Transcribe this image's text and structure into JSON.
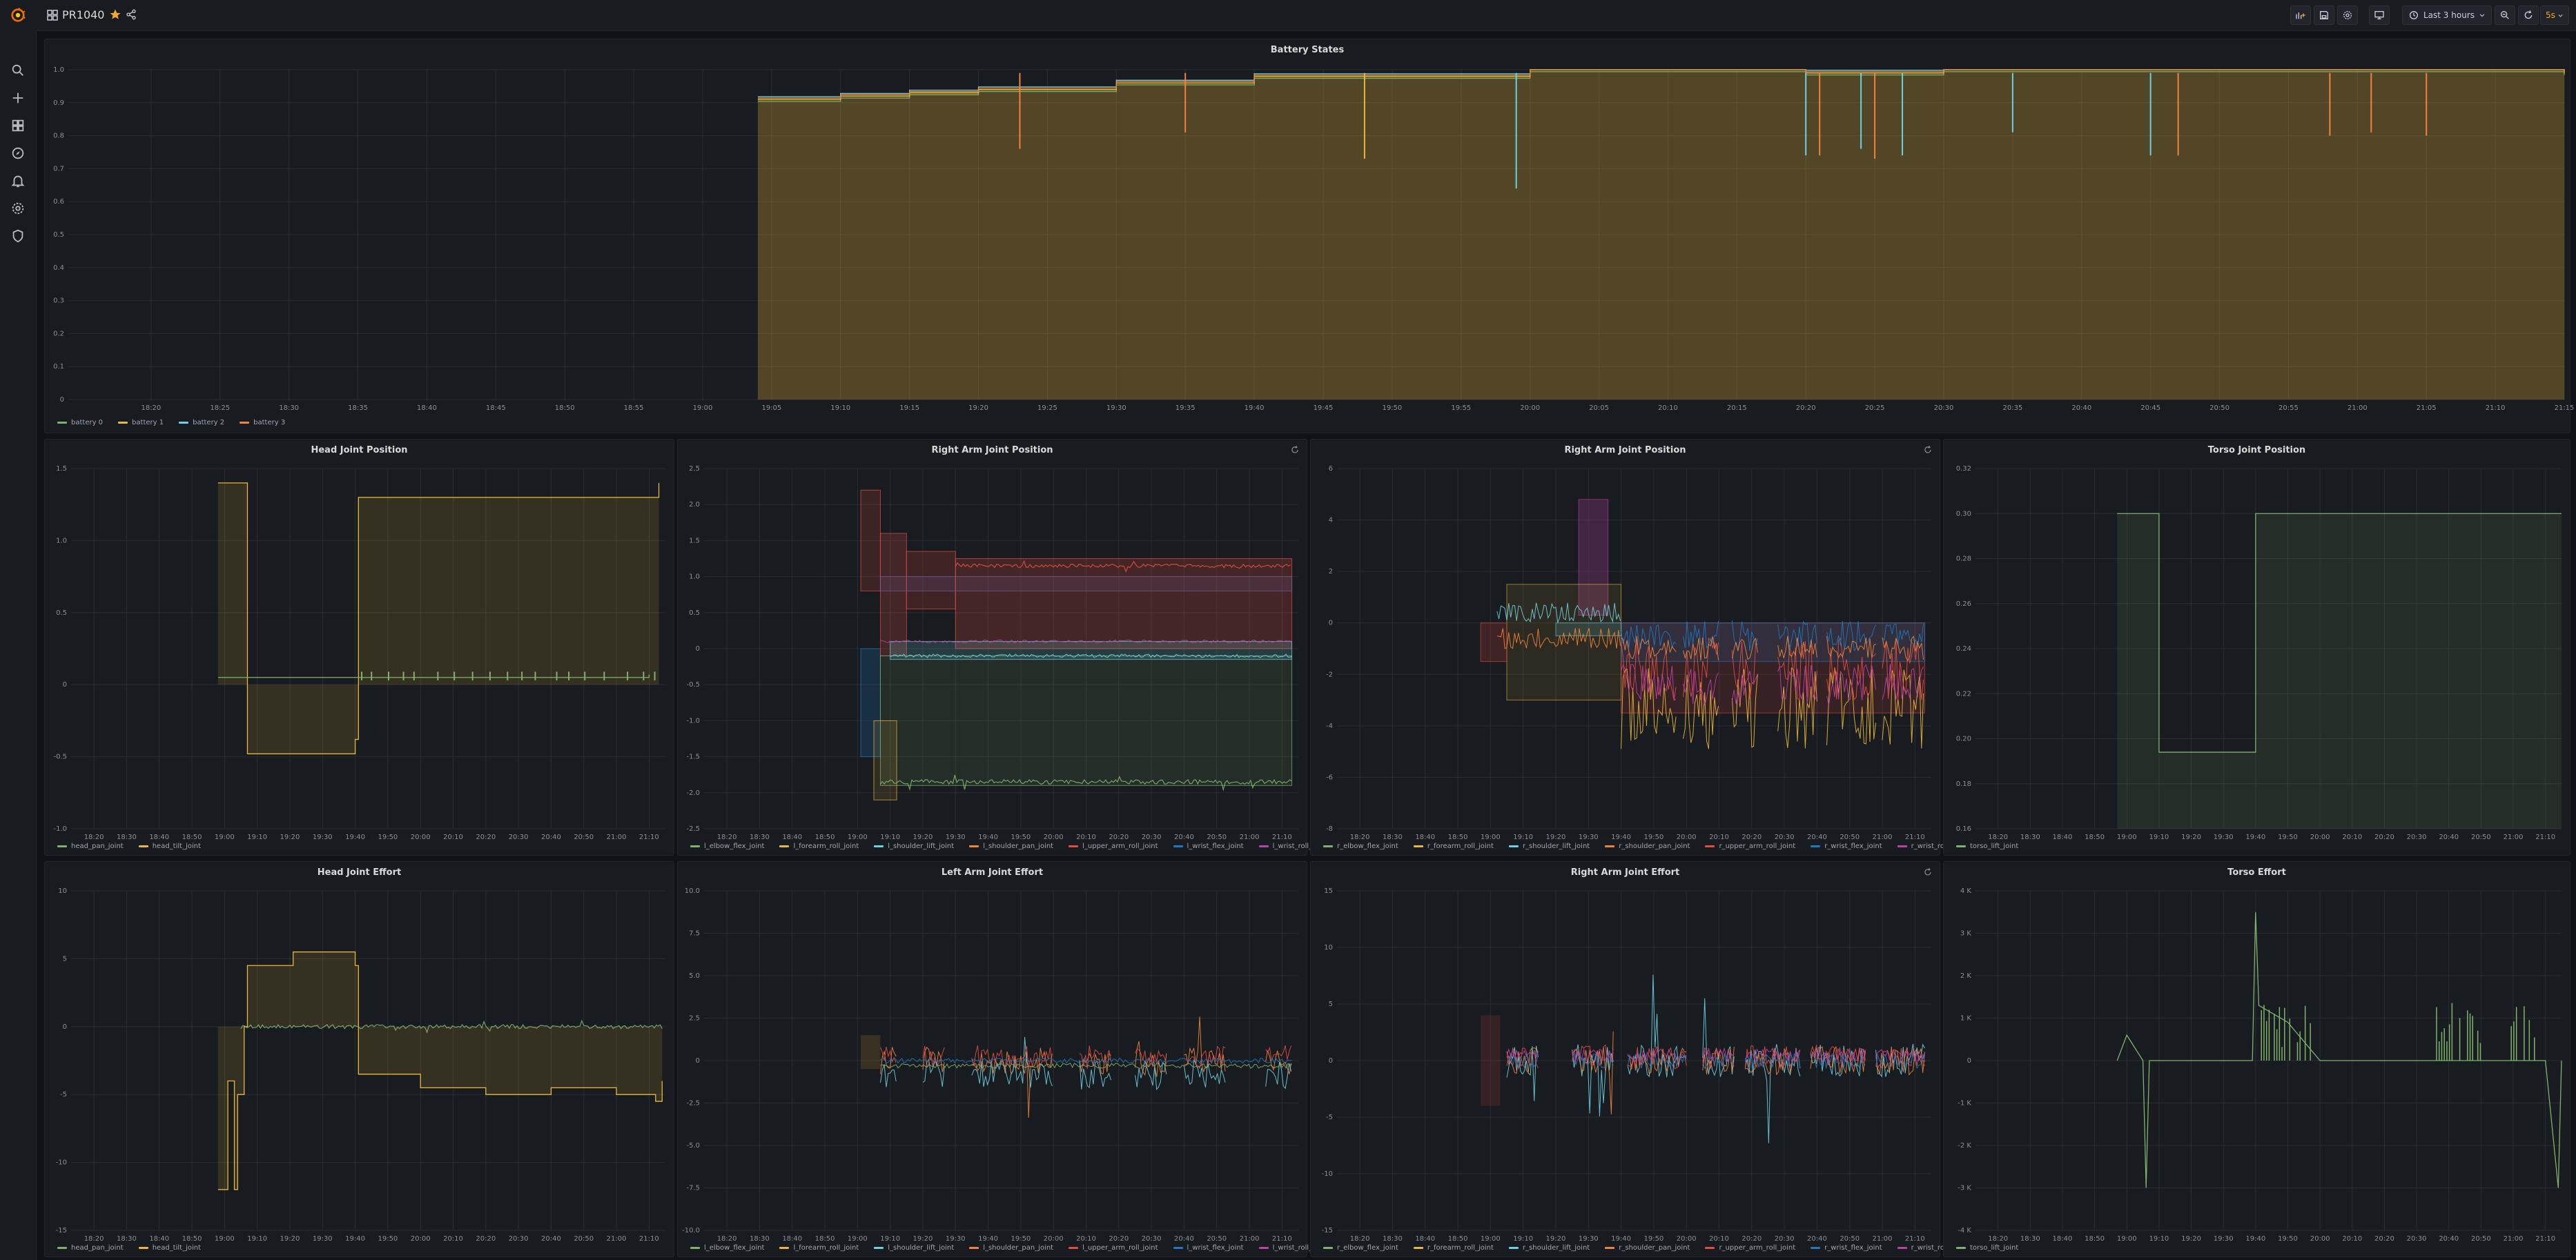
{
  "topbar": {
    "title": "PR1040",
    "time_range": "Last 3 hours",
    "refresh": "5s"
  },
  "sidebar": {
    "items": [
      {
        "icon": "search-icon"
      },
      {
        "icon": "plus-icon"
      },
      {
        "icon": "dashboards-icon"
      },
      {
        "icon": "compass-icon"
      },
      {
        "icon": "bell-icon"
      },
      {
        "icon": "gear-icon"
      },
      {
        "icon": "shield-icon"
      }
    ]
  },
  "colors": {
    "green": "#7eb26d",
    "yellow": "#eab839",
    "cyan": "#6ed0e0",
    "orange": "#ef843c",
    "red": "#e24d42",
    "blue": "#1f78c1",
    "pink": "#ba43a9",
    "violet": "#705da0"
  },
  "chart_data": [
    {
      "type": "area",
      "title": "Battery States",
      "x_ticks": [
        "18:20",
        "18:25",
        "18:30",
        "18:35",
        "18:40",
        "18:45",
        "18:50",
        "18:55",
        "19:00",
        "19:05",
        "19:10",
        "19:15",
        "19:20",
        "19:25",
        "19:30",
        "19:35",
        "19:40",
        "19:45",
        "19:50",
        "19:55",
        "20:00",
        "20:05",
        "20:10",
        "20:15",
        "20:20",
        "20:25",
        "20:30",
        "20:35",
        "20:40",
        "20:45",
        "20:50",
        "20:55",
        "21:00",
        "21:05",
        "21:10",
        "21:15"
      ],
      "y_ticks": [
        "0",
        "0.1",
        "0.2",
        "0.3",
        "0.4",
        "0.5",
        "0.6",
        "0.7",
        "0.8",
        "0.9",
        "1.0"
      ],
      "ylim": [
        0,
        1
      ],
      "series": [
        {
          "name": "battery 0",
          "color": "#7eb26d"
        },
        {
          "name": "battery 1",
          "color": "#eab839"
        },
        {
          "name": "battery 2",
          "color": "#6ed0e0"
        },
        {
          "name": "battery 3",
          "color": "#ef843c"
        }
      ],
      "x": [
        "19:04",
        "19:10",
        "19:15",
        "19:20",
        "19:30",
        "19:40",
        "19:50",
        "20:00",
        "20:10",
        "20:20",
        "20:30",
        "20:40",
        "20:50",
        "21:00",
        "21:10",
        "21:15"
      ],
      "values": [
        0.91,
        0.92,
        0.93,
        0.94,
        0.96,
        0.98,
        0.98,
        1.0,
        1.0,
        0.99,
        1.0,
        1.0,
        1.0,
        1.0,
        1.0,
        0.99
      ]
    },
    {
      "type": "line",
      "title": "Head Joint Position",
      "x_ticks": [
        "18:20",
        "18:30",
        "18:40",
        "18:50",
        "19:00",
        "19:10",
        "19:20",
        "19:30",
        "19:40",
        "19:50",
        "20:00",
        "20:10",
        "20:20",
        "20:30",
        "20:40",
        "20:50",
        "21:00",
        "21:10"
      ],
      "y_ticks": [
        "-1.0",
        "-0.5",
        "0",
        "0.5",
        "1.0",
        "1.5"
      ],
      "ylim": [
        -1,
        1.5
      ],
      "series": [
        {
          "name": "head_pan_joint",
          "color": "#7eb26d",
          "x": [
            "18:58",
            "19:40",
            "21:10"
          ],
          "values": [
            0.05,
            0.05,
            0.07
          ]
        },
        {
          "name": "head_tilt_joint",
          "color": "#eab839",
          "x": [
            "18:58",
            "19:06",
            "19:07",
            "19:40",
            "19:41",
            "21:13"
          ],
          "values": [
            1.4,
            1.4,
            -0.48,
            -0.38,
            1.3,
            1.4
          ]
        }
      ]
    },
    {
      "type": "line",
      "title": "Right Arm Joint Position",
      "x_ticks": [
        "18:20",
        "18:30",
        "18:40",
        "18:50",
        "19:00",
        "19:10",
        "19:20",
        "19:30",
        "19:40",
        "19:50",
        "20:00",
        "20:10",
        "20:20",
        "20:30",
        "20:40",
        "20:50",
        "21:00",
        "21:10"
      ],
      "y_ticks": [
        "-2.5",
        "-2.0",
        "-1.5",
        "-1.0",
        "-0.5",
        "0",
        "0.5",
        "1.0",
        "1.5",
        "2.0",
        "2.5"
      ],
      "ylim": [
        -2.5,
        2.5
      ],
      "series": [
        {
          "name": "l_elbow_flex_joint",
          "color": "#7eb26d"
        },
        {
          "name": "l_forearm_roll_joint",
          "color": "#eab839"
        },
        {
          "name": "l_shoulder_lift_joint",
          "color": "#6ed0e0"
        },
        {
          "name": "l_shoulder_pan_joint",
          "color": "#ef843c"
        },
        {
          "name": "l_upper_arm_roll_joint",
          "color": "#e24d42"
        },
        {
          "name": "l_wrist_flex_joint",
          "color": "#1f78c1"
        },
        {
          "name": "l_wrist_roll_joint",
          "color": "#ba43a9"
        }
      ]
    },
    {
      "type": "line",
      "title": "Right Arm Joint Position",
      "x_ticks": [
        "18:20",
        "18:30",
        "18:40",
        "18:50",
        "19:00",
        "19:10",
        "19:20",
        "19:30",
        "19:40",
        "19:50",
        "20:00",
        "20:10",
        "20:20",
        "20:30",
        "20:40",
        "20:50",
        "21:00",
        "21:10"
      ],
      "y_ticks": [
        "-8",
        "-6",
        "-4",
        "-2",
        "0",
        "2",
        "4",
        "6"
      ],
      "ylim": [
        -8,
        6
      ],
      "series": [
        {
          "name": "r_elbow_flex_joint",
          "color": "#7eb26d"
        },
        {
          "name": "r_forearm_roll_joint",
          "color": "#eab839"
        },
        {
          "name": "r_shoulder_lift_joint",
          "color": "#6ed0e0"
        },
        {
          "name": "r_shoulder_pan_joint",
          "color": "#ef843c"
        },
        {
          "name": "r_upper_arm_roll_joint",
          "color": "#e24d42"
        },
        {
          "name": "r_wrist_flex_joint",
          "color": "#1f78c1"
        },
        {
          "name": "r_wrist_roll_joint",
          "color": "#ba43a9"
        }
      ]
    },
    {
      "type": "line",
      "title": "Torso Joint Position",
      "x_ticks": [
        "18:20",
        "18:30",
        "18:40",
        "18:50",
        "19:00",
        "19:10",
        "19:20",
        "19:30",
        "19:40",
        "19:50",
        "20:00",
        "20:10",
        "20:20",
        "20:30",
        "20:40",
        "20:50",
        "21:00",
        "21:10"
      ],
      "y_ticks": [
        "0.16",
        "0.18",
        "0.20",
        "0.22",
        "0.24",
        "0.26",
        "0.28",
        "0.30",
        "0.32"
      ],
      "ylim": [
        0.16,
        0.32
      ],
      "series": [
        {
          "name": "torso_lift_joint",
          "color": "#7eb26d",
          "x": [
            "18:57",
            "19:09",
            "19:10",
            "19:39",
            "19:40",
            "21:15"
          ],
          "values": [
            0.3,
            0.3,
            0.194,
            0.194,
            0.3,
            0.3
          ]
        }
      ]
    },
    {
      "type": "line",
      "title": "Head Joint Effort",
      "x_ticks": [
        "18:20",
        "18:30",
        "18:40",
        "18:50",
        "19:00",
        "19:10",
        "19:20",
        "19:30",
        "19:40",
        "19:50",
        "20:00",
        "20:10",
        "20:20",
        "20:30",
        "20:40",
        "20:50",
        "21:00",
        "21:10"
      ],
      "y_ticks": [
        "-15",
        "-10",
        "-5",
        "0",
        "5",
        "10"
      ],
      "ylim": [
        -15,
        10
      ],
      "series": [
        {
          "name": "head_pan_joint",
          "color": "#7eb26d"
        },
        {
          "name": "head_tilt_joint",
          "color": "#eab839"
        }
      ]
    },
    {
      "type": "line",
      "title": "Left Arm Joint Effort",
      "x_ticks": [
        "18:20",
        "18:30",
        "18:40",
        "18:50",
        "19:00",
        "19:10",
        "19:20",
        "19:30",
        "19:40",
        "19:50",
        "20:00",
        "20:10",
        "20:20",
        "20:30",
        "20:40",
        "20:50",
        "21:00",
        "21:10"
      ],
      "y_ticks": [
        "-10.0",
        "-7.5",
        "-5.0",
        "-2.5",
        "0",
        "2.5",
        "5.0",
        "7.5",
        "10.0"
      ],
      "ylim": [
        -10,
        10
      ],
      "series": [
        {
          "name": "l_elbow_flex_joint",
          "color": "#7eb26d"
        },
        {
          "name": "l_forearm_roll_joint",
          "color": "#eab839"
        },
        {
          "name": "l_shoulder_lift_joint",
          "color": "#6ed0e0"
        },
        {
          "name": "l_shoulder_pan_joint",
          "color": "#ef843c"
        },
        {
          "name": "l_upper_arm_roll_joint",
          "color": "#e24d42"
        },
        {
          "name": "l_wrist_flex_joint",
          "color": "#1f78c1"
        },
        {
          "name": "l_wrist_roll_joint",
          "color": "#ba43a9"
        }
      ]
    },
    {
      "type": "line",
      "title": "Right Arm Joint Effort",
      "x_ticks": [
        "18:20",
        "18:30",
        "18:40",
        "18:50",
        "19:00",
        "19:10",
        "19:20",
        "19:30",
        "19:40",
        "19:50",
        "20:00",
        "20:10",
        "20:20",
        "20:30",
        "20:40",
        "20:50",
        "21:00",
        "21:10"
      ],
      "y_ticks": [
        "-15",
        "-10",
        "-5",
        "0",
        "5",
        "10",
        "15"
      ],
      "ylim": [
        -15,
        15
      ],
      "series": [
        {
          "name": "r_elbow_flex_joint",
          "color": "#7eb26d"
        },
        {
          "name": "r_forearm_roll_joint",
          "color": "#eab839"
        },
        {
          "name": "r_shoulder_lift_joint",
          "color": "#6ed0e0"
        },
        {
          "name": "r_shoulder_pan_joint",
          "color": "#ef843c"
        },
        {
          "name": "r_upper_arm_roll_joint",
          "color": "#e24d42"
        },
        {
          "name": "r_wrist_flex_joint",
          "color": "#1f78c1"
        },
        {
          "name": "r_wrist_roll_joint",
          "color": "#ba43a9"
        }
      ]
    },
    {
      "type": "line",
      "title": "Torso Effort",
      "x_ticks": [
        "18:20",
        "18:30",
        "18:40",
        "18:50",
        "19:00",
        "19:10",
        "19:20",
        "19:30",
        "19:40",
        "19:50",
        "20:00",
        "20:10",
        "20:20",
        "20:30",
        "20:40",
        "20:50",
        "21:00",
        "21:10"
      ],
      "y_ticks": [
        "-4 K",
        "-3 K",
        "-2 K",
        "-1 K",
        "0",
        "1 K",
        "2 K",
        "3 K",
        "4 K"
      ],
      "ylim": [
        -4000,
        4000
      ],
      "series": [
        {
          "name": "torso_lift_joint",
          "color": "#7eb26d",
          "x": [
            "18:57",
            "19:00",
            "19:05",
            "19:06",
            "19:07",
            "19:39",
            "19:40",
            "19:41",
            "19:50",
            "20:00",
            "20:10",
            "20:20",
            "20:30",
            "20:40",
            "21:10",
            "21:14",
            "21:15"
          ],
          "values": [
            0,
            600,
            0,
            -3000,
            0,
            0,
            3500,
            1300,
            900,
            0,
            0,
            0,
            0,
            0,
            0,
            -3000,
            0
          ]
        }
      ]
    }
  ]
}
